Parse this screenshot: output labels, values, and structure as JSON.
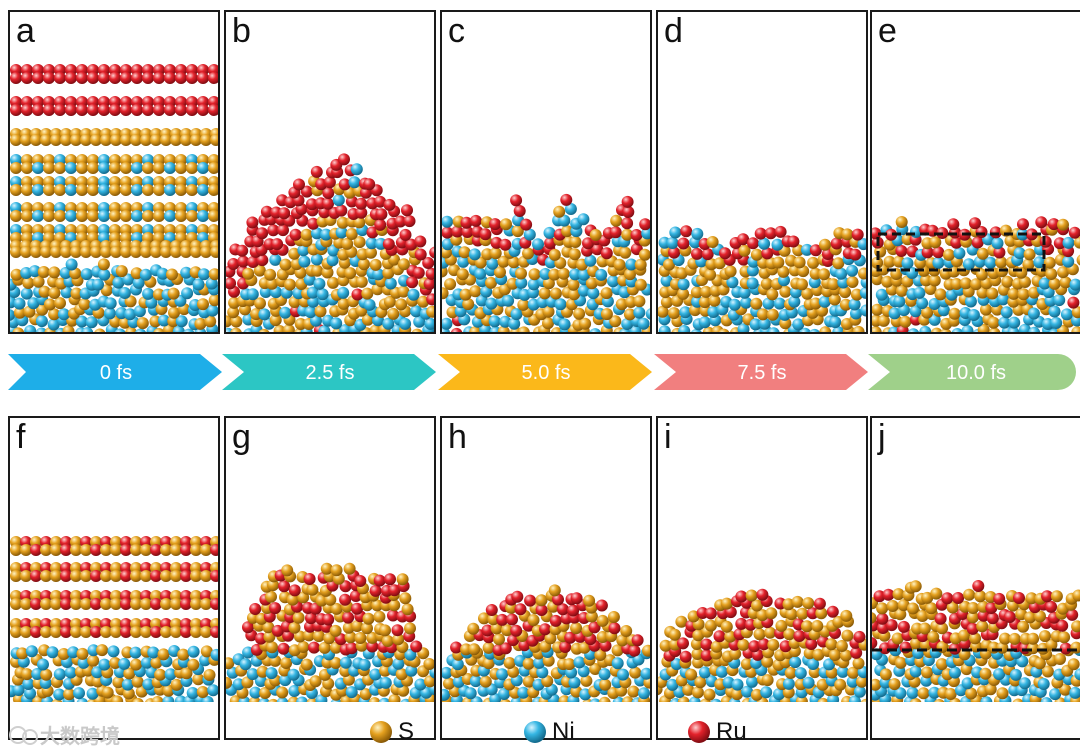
{
  "colors": {
    "S": "#e5a11f",
    "Ni": "#35b6e3",
    "Ru": "#e3222b",
    "border": "#1a1a1a"
  },
  "panels_top": [
    {
      "label": "a",
      "type": "layered"
    },
    {
      "label": "b",
      "type": "mound-top"
    },
    {
      "label": "c",
      "type": "mixed-top"
    },
    {
      "label": "d",
      "type": "flat-top"
    },
    {
      "label": "e",
      "type": "flat-top-boxed"
    }
  ],
  "panels_bottom": [
    {
      "label": "f",
      "type": "layered-bottom"
    },
    {
      "label": "g",
      "type": "dome"
    },
    {
      "label": "h",
      "type": "low-dome"
    },
    {
      "label": "i",
      "type": "lower-dome"
    },
    {
      "label": "j",
      "type": "slab"
    }
  ],
  "timeline": [
    {
      "label": "0 fs",
      "color": "#1eaee8"
    },
    {
      "label": "2.5 fs",
      "color": "#2cc6c4"
    },
    {
      "label": "5.0 fs",
      "color": "#fbb81a"
    },
    {
      "label": "7.5 fs",
      "color": "#f17f7f"
    },
    {
      "label": "10.0 fs",
      "color": "#9fd08a"
    }
  ],
  "legend": [
    {
      "name": "S",
      "color": "#e5a11f",
      "icon": "S-atom-icon"
    },
    {
      "name": "Ni",
      "color": "#35b6e3",
      "icon": "Ni-atom-icon"
    },
    {
      "name": "Ru",
      "color": "#e3222b",
      "icon": "Ru-atom-icon"
    }
  ],
  "watermark": "大数跨境"
}
